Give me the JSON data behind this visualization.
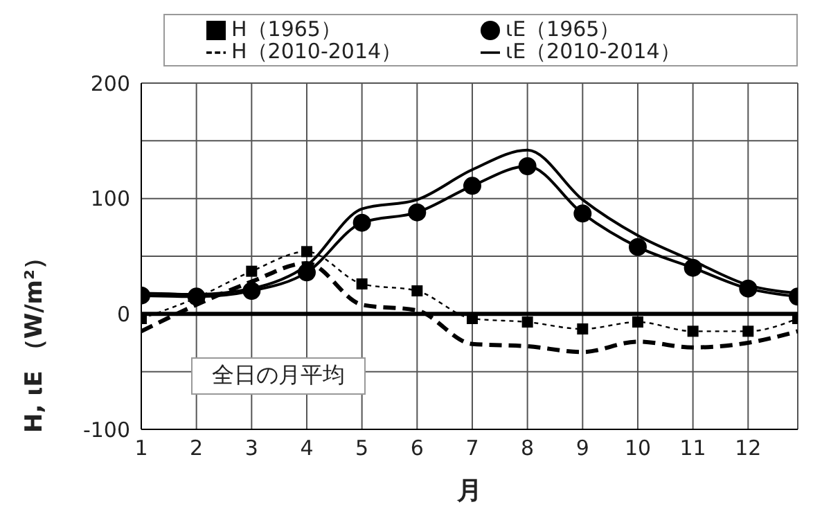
{
  "chart_data": {
    "type": "line",
    "xlabel": "月",
    "ylabel": "H,  ιE （W/m²）",
    "annotations": [
      "全日の月平均"
    ],
    "x": [
      1,
      2,
      3,
      4,
      5,
      6,
      7,
      8,
      9,
      10,
      11,
      12,
      12.9
    ],
    "xlim": [
      1,
      12.9
    ],
    "xticks": [
      1,
      2,
      3,
      4,
      5,
      6,
      7,
      8,
      9,
      10,
      11,
      12
    ],
    "ylim": [
      -100,
      200
    ],
    "yticks": [
      -100,
      {
        "value": -50,
        "label": null
      },
      0,
      {
        "value": 50,
        "label": null
      },
      100,
      {
        "value": 150,
        "label": null
      },
      200
    ],
    "grid": true,
    "legend": "top",
    "ref_lines": [
      {
        "axis": "y",
        "value": 0,
        "label": null,
        "color": "#000000"
      }
    ],
    "series": [
      {
        "name": "H（1965）",
        "color": "#000000",
        "marker": "square",
        "line_style": "dotted",
        "values": [
          -4,
          14,
          37,
          54,
          26,
          20,
          -4,
          -7,
          -13,
          -7,
          -15,
          -15,
          -4
        ]
      },
      {
        "name": "ιE（1965）",
        "color": "#000000",
        "marker": "circle",
        "line_style": "solid",
        "values": [
          16,
          15,
          20,
          36,
          79,
          88,
          111,
          128,
          87,
          58,
          40,
          22,
          15
        ]
      },
      {
        "name": "H（2010-2014）",
        "color": "#000000",
        "marker": "none",
        "line_style": "dashed",
        "values": [
          -15,
          8,
          28,
          44,
          8,
          3,
          -26,
          -28,
          -33,
          -24,
          -29,
          -25,
          -15
        ]
      },
      {
        "name": "ιE（2010-2014）",
        "color": "#000000",
        "marker": "none",
        "line_style": "solid",
        "values": [
          18,
          17,
          22,
          42,
          91,
          99,
          125,
          142,
          99,
          68,
          46,
          25,
          18
        ]
      }
    ]
  }
}
